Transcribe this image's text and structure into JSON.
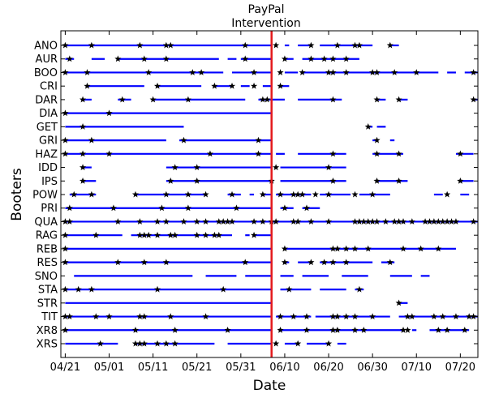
{
  "chart_data": {
    "type": "timeline",
    "xlabel": "Date",
    "ylabel": "Booters",
    "annotation": {
      "line1": "PayPal",
      "line2": "Intervention",
      "date": "06/07"
    },
    "x_ticks": [
      "04/21",
      "05/01",
      "05/11",
      "05/21",
      "05/31",
      "06/10",
      "06/20",
      "06/30",
      "07/10",
      "07/20"
    ],
    "x_range": [
      "04/20",
      "07/24"
    ],
    "colors": {
      "series": "#0000ff",
      "event": "#000000",
      "intervention": "#e41a1c"
    },
    "booters": [
      {
        "name": "ANO",
        "segments": [
          [
            "04/21",
            "06/07"
          ],
          [
            "06/10",
            "06/11"
          ],
          [
            "06/13",
            "06/16"
          ],
          [
            "06/18",
            "06/30"
          ],
          [
            "07/04",
            "07/06"
          ]
        ],
        "events": [
          "04/21",
          "04/27",
          "05/08",
          "05/14",
          "05/15",
          "06/01",
          "06/08",
          "06/16",
          "06/22",
          "06/26",
          "06/27",
          "07/04"
        ]
      },
      {
        "name": "AUR",
        "segments": [
          [
            "04/21",
            "04/23"
          ],
          [
            "04/27",
            "04/30"
          ],
          [
            "05/03",
            "05/26"
          ],
          [
            "05/28",
            "05/30"
          ],
          [
            "05/31",
            "06/07"
          ],
          [
            "06/10",
            "06/12"
          ],
          [
            "06/14",
            "06/27"
          ]
        ],
        "events": [
          "04/22",
          "05/03",
          "05/09",
          "05/14",
          "06/01",
          "06/10",
          "06/16",
          "06/19",
          "06/21",
          "06/24"
        ]
      },
      {
        "name": "BOO",
        "segments": [
          [
            "04/21",
            "05/27"
          ],
          [
            "05/29",
            "06/07"
          ],
          [
            "06/10",
            "06/13"
          ],
          [
            "06/14",
            "07/15"
          ],
          [
            "07/17",
            "07/19"
          ],
          [
            "07/21",
            "07/24"
          ]
        ],
        "events": [
          "04/21",
          "04/26",
          "05/10",
          "05/20",
          "05/22",
          "06/03",
          "06/09",
          "06/14",
          "06/20",
          "06/21",
          "06/24",
          "06/30",
          "07/01",
          "07/05",
          "07/10",
          "07/23"
        ]
      },
      {
        "name": "CRI",
        "segments": [
          [
            "04/26",
            "05/09"
          ],
          [
            "05/12",
            "05/22"
          ],
          [
            "05/25",
            "05/29"
          ],
          [
            "05/31",
            "06/02"
          ],
          [
            "06/05",
            "06/07"
          ],
          [
            "06/09",
            "06/11"
          ]
        ],
        "events": [
          "04/26",
          "05/12",
          "05/25",
          "05/29",
          "06/03",
          "06/09"
        ]
      },
      {
        "name": "DAR",
        "segments": [
          [
            "04/25",
            "04/27"
          ],
          [
            "05/03",
            "05/06"
          ],
          [
            "05/11",
            "06/01"
          ],
          [
            "06/04",
            "06/10"
          ],
          [
            "06/13",
            "06/23"
          ],
          [
            "07/01",
            "07/03"
          ],
          [
            "07/06",
            "07/08"
          ],
          [
            "07/23",
            "07/24"
          ]
        ],
        "events": [
          "04/25",
          "05/04",
          "05/11",
          "05/19",
          "06/05",
          "06/06",
          "06/21",
          "07/01",
          "07/06",
          "07/23"
        ]
      },
      {
        "name": "DIA",
        "segments": [
          [
            "04/21",
            "06/07"
          ]
        ],
        "events": [
          "04/21",
          "05/01"
        ]
      },
      {
        "name": "GET",
        "segments": [
          [
            "04/21",
            "05/18"
          ],
          [
            "06/29",
            "06/30"
          ],
          [
            "07/01",
            "07/03"
          ]
        ],
        "events": [
          "04/25",
          "06/29"
        ]
      },
      {
        "name": "GRI",
        "segments": [
          [
            "04/21",
            "05/14"
          ],
          [
            "05/17",
            "06/07"
          ],
          [
            "06/30",
            "07/01"
          ],
          [
            "07/04",
            "07/05"
          ]
        ],
        "events": [
          "04/21",
          "04/27",
          "05/18",
          "06/04",
          "07/01"
        ]
      },
      {
        "name": "HAZ",
        "segments": [
          [
            "04/21",
            "06/07"
          ],
          [
            "06/08",
            "06/10"
          ],
          [
            "06/13",
            "06/24"
          ],
          [
            "06/30",
            "07/07"
          ],
          [
            "07/19",
            "07/23"
          ]
        ],
        "events": [
          "04/21",
          "04/25",
          "05/01",
          "05/24",
          "06/04",
          "06/21",
          "07/01",
          "07/06",
          "07/20"
        ]
      },
      {
        "name": "IDD",
        "segments": [
          [
            "04/25",
            "04/27"
          ],
          [
            "05/14",
            "06/07"
          ],
          [
            "06/09",
            "06/24"
          ]
        ],
        "events": [
          "04/25",
          "05/16",
          "05/21",
          "06/08",
          "06/20"
        ]
      },
      {
        "name": "IPS",
        "segments": [
          [
            "04/25",
            "04/28"
          ],
          [
            "05/14",
            "06/07"
          ],
          [
            "06/09",
            "06/24"
          ],
          [
            "07/01",
            "07/08"
          ],
          [
            "07/20",
            "07/23"
          ]
        ],
        "events": [
          "04/25",
          "05/15",
          "05/21",
          "06/07",
          "06/21",
          "07/01",
          "07/06",
          "07/20"
        ]
      },
      {
        "name": "POW",
        "segments": [
          [
            "04/22",
            "04/28"
          ],
          [
            "05/07",
            "05/23"
          ],
          [
            "05/28",
            "05/31"
          ],
          [
            "06/02",
            "06/03"
          ],
          [
            "06/05",
            "06/07"
          ],
          [
            "06/08",
            "06/16"
          ],
          [
            "06/18",
            "06/25"
          ],
          [
            "06/27",
            "07/04"
          ],
          [
            "07/14",
            "07/16"
          ],
          [
            "07/20",
            "07/22"
          ]
        ],
        "events": [
          "04/23",
          "04/27",
          "05/07",
          "05/14",
          "05/19",
          "05/23",
          "05/29",
          "06/05",
          "06/09",
          "06/12",
          "06/13",
          "06/14",
          "06/17",
          "06/20",
          "06/26",
          "06/30",
          "07/17"
        ]
      },
      {
        "name": "PRI",
        "segments": [
          [
            "04/21",
            "06/07"
          ],
          [
            "06/09",
            "06/12"
          ],
          [
            "06/14",
            "06/18"
          ]
        ],
        "events": [
          "04/22",
          "05/02",
          "05/13",
          "05/19",
          "05/30",
          "06/10",
          "06/15"
        ]
      },
      {
        "name": "QUA",
        "segments": [
          [
            "04/21",
            "07/24"
          ]
        ],
        "events": [
          "04/21",
          "04/22",
          "05/03",
          "05/08",
          "05/12",
          "05/14",
          "05/18",
          "05/21",
          "05/23",
          "05/26",
          "05/27",
          "05/28",
          "05/29",
          "06/03",
          "06/05",
          "06/07",
          "06/08",
          "06/12",
          "06/13",
          "06/16",
          "06/20",
          "06/26",
          "06/27",
          "06/28",
          "06/29",
          "06/30",
          "07/01",
          "07/03",
          "07/05",
          "07/06",
          "07/07",
          "07/09",
          "07/12",
          "07/13",
          "07/14",
          "07/15",
          "07/16",
          "07/17",
          "07/18",
          "07/19",
          "07/23"
        ]
      },
      {
        "name": "RAG",
        "segments": [
          [
            "04/21",
            "05/04"
          ],
          [
            "05/06",
            "05/29"
          ],
          [
            "06/01",
            "06/02"
          ],
          [
            "06/03",
            "06/07"
          ]
        ],
        "events": [
          "04/21",
          "04/28",
          "05/08",
          "05/09",
          "05/10",
          "05/12",
          "05/15",
          "05/16",
          "05/21",
          "05/23",
          "05/25",
          "05/26",
          "06/03"
        ]
      },
      {
        "name": "REB",
        "segments": [
          [
            "04/21",
            "06/07"
          ],
          [
            "06/10",
            "07/19"
          ]
        ],
        "events": [
          "04/21",
          "06/10",
          "06/21",
          "06/22",
          "06/24",
          "06/26",
          "06/29",
          "07/07",
          "07/11",
          "07/15"
        ]
      },
      {
        "name": "RES",
        "segments": [
          [
            "04/21",
            "06/07"
          ],
          [
            "06/10",
            "06/11"
          ],
          [
            "06/13",
            "06/16"
          ],
          [
            "06/18",
            "06/30"
          ],
          [
            "07/02",
            "07/05"
          ]
        ],
        "events": [
          "04/21",
          "05/03",
          "05/09",
          "05/14",
          "06/01",
          "06/10",
          "06/16",
          "06/19",
          "06/21",
          "06/24",
          "07/04"
        ]
      },
      {
        "name": "SNO",
        "segments": [
          [
            "04/23",
            "05/20"
          ],
          [
            "05/23",
            "05/30"
          ],
          [
            "06/01",
            "06/07"
          ],
          [
            "06/09",
            "06/12"
          ],
          [
            "06/14",
            "06/20"
          ],
          [
            "06/23",
            "06/29"
          ],
          [
            "07/04",
            "07/09"
          ],
          [
            "07/11",
            "07/13"
          ]
        ],
        "events": []
      },
      {
        "name": "STA",
        "segments": [
          [
            "04/21",
            "06/07"
          ],
          [
            "06/09",
            "06/16"
          ],
          [
            "06/18",
            "06/24"
          ],
          [
            "06/26",
            "06/28"
          ]
        ],
        "events": [
          "04/21",
          "04/24",
          "04/27",
          "05/12",
          "05/27",
          "06/11",
          "06/27"
        ]
      },
      {
        "name": "STR",
        "segments": [
          [
            "04/21",
            "06/07"
          ],
          [
            "07/06",
            "07/08"
          ]
        ],
        "events": [
          "07/06"
        ]
      },
      {
        "name": "TIT",
        "segments": [
          [
            "04/21",
            "06/07"
          ],
          [
            "06/08",
            "06/16"
          ],
          [
            "06/17",
            "07/04"
          ],
          [
            "07/06",
            "07/24"
          ]
        ],
        "events": [
          "04/21",
          "04/22",
          "04/28",
          "05/01",
          "05/08",
          "05/09",
          "05/15",
          "05/23",
          "06/09",
          "06/12",
          "06/15",
          "06/21",
          "06/22",
          "06/24",
          "06/26",
          "06/30",
          "07/08",
          "07/09",
          "07/14",
          "07/16",
          "07/19",
          "07/22",
          "07/23"
        ]
      },
      {
        "name": "XR8",
        "segments": [
          [
            "04/21",
            "06/07"
          ],
          [
            "06/09",
            "07/07"
          ],
          [
            "07/09",
            "07/10"
          ],
          [
            "07/13",
            "07/22"
          ]
        ],
        "events": [
          "04/21",
          "05/07",
          "05/16",
          "05/28",
          "06/09",
          "06/15",
          "06/21",
          "06/22",
          "06/26",
          "06/28",
          "07/07",
          "07/08",
          "07/15",
          "07/17",
          "07/21"
        ]
      },
      {
        "name": "XRS",
        "segments": [
          [
            "04/21",
            "05/03"
          ],
          [
            "05/07",
            "05/25"
          ],
          [
            "05/28",
            "06/07"
          ],
          [
            "06/10",
            "06/13"
          ],
          [
            "06/15",
            "06/20"
          ],
          [
            "06/22",
            "06/24"
          ]
        ],
        "events": [
          "04/29",
          "05/07",
          "05/08",
          "05/09",
          "05/12",
          "05/14",
          "05/16",
          "06/08",
          "06/13",
          "06/20"
        ]
      }
    ]
  }
}
